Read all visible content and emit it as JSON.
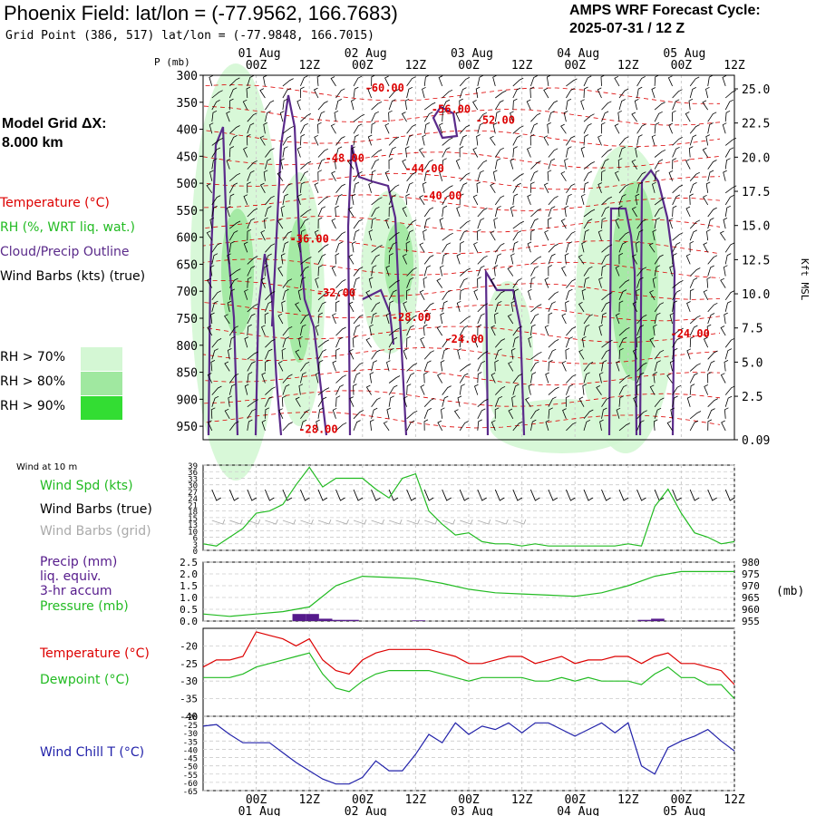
{
  "header": {
    "title": "Phoenix Field:  lat/lon = (-77.9562, 166.7683)",
    "subtitle": "Grid Point (386, 517) lat/lon = (-77.9848, 166.7015)",
    "cycle_line1": "AMPS WRF Forecast Cycle:",
    "cycle_line2": "2025-07-31 / 12  Z"
  },
  "left_legend": {
    "model_grid_line1": "Model Grid ΔX:",
    "model_grid_line2": " 8.000 km",
    "temperature": "Temperature (°C)",
    "rh": "RH (%, WRT liq. wat.)",
    "cloud": "Cloud/Precip Outline",
    "wind_barbs": "Wind Barbs (kts) (true)",
    "rh70": "RH > 70%",
    "rh80": "RH > 80%",
    "rh90": "RH > 90%",
    "wind_at_10m": "Wind at 10 m",
    "wind_spd": "Wind Spd (kts)",
    "wind_barbs_true": "Wind Barbs (true)",
    "wind_barbs_grid": "Wind Barbs (grid)",
    "precip1": "Precip (mm)",
    "precip2": "liq. equiv.",
    "precip3": "3-hr accum",
    "pressure": "Pressure (mb)",
    "temperature2": "Temperature (°C)",
    "dewpoint": "Dewpoint (°C)",
    "wind_chill": "Wind Chill T (°C)",
    "mb_unit": "(mb)",
    "kft_label": "Kft MSL",
    "p_label": "P (mb)"
  },
  "colors": {
    "temperature": "#dd0000",
    "rh70": "#d4f7d4",
    "rh80": "#a0e8a0",
    "rh90": "#33dd33",
    "cloud": "#5a2a8a",
    "wind_speed": "#22bb22",
    "wind_grid": "#aaaaaa",
    "pressure": "#22bb22",
    "precip": "#551a8b",
    "dewpoint": "#22bb22",
    "wind_chill": "#2222aa"
  },
  "time_axis": {
    "top_hours": [
      "00Z",
      "12Z",
      "00Z",
      "12Z",
      "00Z",
      "12Z",
      "00Z",
      "12Z",
      "00Z",
      "12Z"
    ],
    "top_dates": [
      "01 Aug",
      "02 Aug",
      "03 Aug",
      "04 Aug",
      "05 Aug"
    ],
    "bottom_hours": [
      "00Z",
      "12Z",
      "00Z",
      "12Z",
      "00Z",
      "12Z",
      "00Z",
      "12Z",
      "00Z",
      "12Z"
    ],
    "bottom_dates": [
      "01 Aug",
      "02 Aug",
      "03 Aug",
      "04 Aug",
      "05 Aug"
    ]
  },
  "chart_data": [
    {
      "type": "heatmap",
      "name": "cross-section",
      "x_start_hours": -12,
      "x_end_hours": 108,
      "pressure_ticks": [
        "300",
        "350",
        "400",
        "450",
        "500",
        "550",
        "600",
        "650",
        "700",
        "750",
        "800",
        "850",
        "900",
        "950"
      ],
      "height_ticks": [
        "25.0",
        "22.5",
        "20.0",
        "17.5",
        "15.0",
        "12.5",
        "10.0",
        "7.5",
        "5.0",
        "2.5",
        "0.09"
      ],
      "temperature_labels": [
        {
          "text": "-60.00",
          "hour": 29,
          "p": 330
        },
        {
          "text": "-56.00",
          "hour": 44,
          "p": 370
        },
        {
          "text": "-52.00",
          "hour": 54,
          "p": 390
        },
        {
          "text": "-48.00",
          "hour": 20,
          "p": 460
        },
        {
          "text": "-44.00",
          "hour": 38,
          "p": 480
        },
        {
          "text": "-40.00",
          "hour": 42,
          "p": 530
        },
        {
          "text": "-36.00",
          "hour": 12,
          "p": 610
        },
        {
          "text": "-32.00",
          "hour": 18,
          "p": 710
        },
        {
          "text": "-28.00",
          "hour": 35,
          "p": 755
        },
        {
          "text": "-24.00",
          "hour": 47,
          "p": 795
        },
        {
          "text": "-24.00",
          "hour": 98,
          "p": 785
        },
        {
          "text": "-28.00",
          "hour": 14,
          "p": 962
        }
      ]
    },
    {
      "type": "line",
      "name": "wind-speed",
      "ylabel_ticks": [
        "39",
        "36",
        "33",
        "30",
        "27",
        "24",
        "21",
        "18",
        "15",
        "13",
        "10",
        "6",
        "3",
        "0"
      ],
      "ylim": [
        0,
        39
      ],
      "x_hours": [
        -12,
        -9,
        -6,
        -3,
        0,
        3,
        6,
        9,
        12,
        15,
        18,
        21,
        24,
        27,
        30,
        33,
        36,
        39,
        42,
        45,
        48,
        51,
        54,
        57,
        60,
        63,
        66,
        69,
        72,
        75,
        78,
        81,
        84,
        87,
        90,
        93,
        96,
        99,
        102,
        105,
        108
      ],
      "values": [
        3,
        2,
        6,
        10,
        17,
        18,
        21,
        30,
        38,
        29,
        33,
        33,
        33,
        28,
        24,
        33,
        35,
        18,
        12,
        7,
        8,
        4,
        3,
        3,
        2,
        3,
        2,
        2,
        2,
        2,
        2,
        2,
        3,
        2,
        20,
        28,
        17,
        8,
        6,
        3,
        4
      ]
    },
    {
      "type": "line",
      "name": "pressure-and-precip",
      "pressure_ticks": [
        "980",
        "975",
        "970",
        "965",
        "960",
        "955"
      ],
      "pressure_ylim": [
        955,
        980
      ],
      "precip_ticks": [
        "2.5",
        "2.0",
        "1.5",
        "1.0",
        "0.5",
        "0.0"
      ],
      "precip_ylim": [
        0,
        2.5
      ],
      "x_hours": [
        -12,
        -6,
        0,
        6,
        12,
        18,
        24,
        30,
        36,
        42,
        48,
        54,
        60,
        66,
        72,
        78,
        84,
        90,
        96,
        102,
        108
      ],
      "pressure": [
        958,
        957,
        958,
        959,
        961,
        970,
        974,
        973.5,
        973,
        971,
        968.5,
        967,
        966.5,
        966,
        965.5,
        967,
        970,
        974,
        976,
        976,
        976
      ],
      "precip_hours": [
        9,
        12,
        15,
        18,
        21,
        36,
        87,
        90
      ],
      "precip_values": [
        0.3,
        0.3,
        0.1,
        0.05,
        0.05,
        0.03,
        0.05,
        0.1
      ]
    },
    {
      "type": "line",
      "name": "temperature-dewpoint",
      "y_ticks": [
        "-20",
        "-25",
        "-30",
        "-35",
        "-40"
      ],
      "ylim": [
        -40,
        -15
      ],
      "x_hours": [
        -12,
        -9,
        -6,
        -3,
        0,
        3,
        6,
        9,
        12,
        15,
        18,
        21,
        24,
        27,
        30,
        33,
        36,
        39,
        42,
        45,
        48,
        51,
        54,
        57,
        60,
        63,
        66,
        69,
        72,
        75,
        78,
        81,
        84,
        87,
        90,
        93,
        96,
        99,
        102,
        105,
        108
      ],
      "temperature": [
        -26,
        -24,
        -24,
        -23,
        -16,
        -17,
        -18,
        -20,
        -18,
        -24,
        -27,
        -28,
        -24,
        -22,
        -21,
        -21,
        -21,
        -21,
        -22,
        -23,
        -25,
        -25,
        -24,
        -23,
        -23,
        -25,
        -24,
        -23,
        -25,
        -24,
        -24,
        -23,
        -23,
        -25,
        -23,
        -22,
        -25,
        -25,
        -26,
        -27,
        -31
      ],
      "dewpoint": [
        -29,
        -29,
        -29,
        -28,
        -26,
        -25,
        -24,
        -23,
        -22,
        -28,
        -32,
        -33,
        -30,
        -28,
        -27,
        -27,
        -27,
        -27,
        -28,
        -29,
        -30,
        -29,
        -29,
        -29,
        -29,
        -30,
        -30,
        -29,
        -30,
        -29,
        -30,
        -30,
        -30,
        -31,
        -28,
        -26,
        -29,
        -29,
        -31,
        -31,
        -35
      ]
    },
    {
      "type": "line",
      "name": "wind-chill",
      "y_ticks": [
        "-20",
        "-25",
        "-30",
        "-35",
        "-40",
        "-45",
        "-50",
        "-55",
        "-60",
        "-65"
      ],
      "ylim": [
        -65,
        -20
      ],
      "x_hours": [
        -12,
        -9,
        -6,
        -3,
        0,
        3,
        6,
        9,
        12,
        15,
        18,
        21,
        24,
        27,
        30,
        33,
        36,
        39,
        42,
        45,
        48,
        51,
        54,
        57,
        60,
        63,
        66,
        69,
        72,
        75,
        78,
        81,
        84,
        87,
        90,
        93,
        96,
        99,
        102,
        105,
        108
      ],
      "values": [
        -26,
        -25,
        -31,
        -36,
        -36,
        -36,
        -42,
        -48,
        -53,
        -58,
        -61,
        -61,
        -57,
        -47,
        -53,
        -53,
        -43,
        -31,
        -36,
        -24,
        -31,
        -26,
        -28,
        -24,
        -30,
        -24,
        -24,
        -28,
        -32,
        -28,
        -24,
        -30,
        -24,
        -50,
        -55,
        -39,
        -35,
        -32,
        -28,
        -35,
        -41
      ]
    }
  ]
}
